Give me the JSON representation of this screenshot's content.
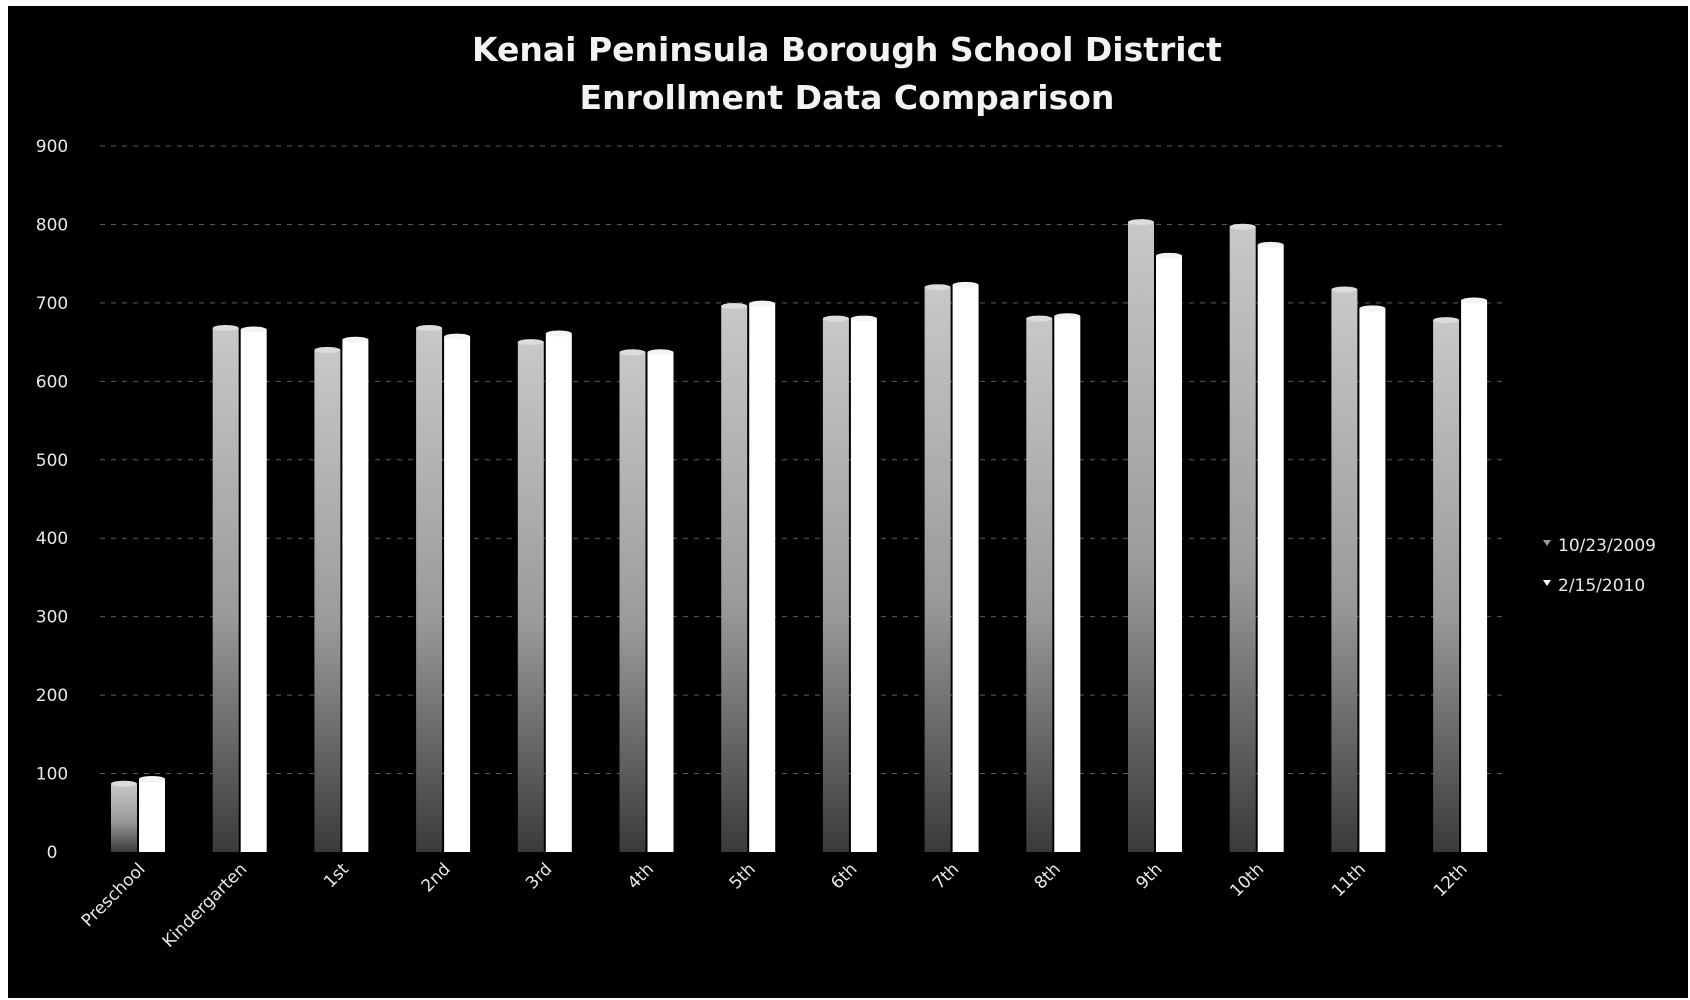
{
  "chart_data": {
    "type": "bar",
    "title_lines": [
      "Kenai Peninsula Borough School District",
      "Enrollment Data Comparison"
    ],
    "xlabel": "",
    "ylabel": "",
    "ylim": [
      0,
      900
    ],
    "yticks": [
      0,
      100,
      200,
      300,
      400,
      500,
      600,
      700,
      800,
      900
    ],
    "grid": true,
    "legend_position": "right",
    "categories": [
      "Preschool",
      "Kindergarten",
      "1st",
      "2nd",
      "3rd",
      "4th",
      "5th",
      "6th",
      "7th",
      "8th",
      "9th",
      "10th",
      "11th",
      "12th"
    ],
    "series": [
      {
        "name": "10/23/2009",
        "color": "#9a9a9a",
        "values": [
          87,
          668,
          640,
          668,
          650,
          637,
          696,
          680,
          720,
          680,
          803,
          797,
          717,
          678
        ]
      },
      {
        "name": "2/15/2010",
        "color": "#ffffff",
        "values": [
          93,
          666,
          653,
          657,
          661,
          637,
          699,
          680,
          723,
          683,
          760,
          774,
          693,
          703
        ]
      }
    ]
  },
  "colors": {
    "background": "#000000",
    "text": "#e8e8e8",
    "grid": "#5a5a5a"
  }
}
